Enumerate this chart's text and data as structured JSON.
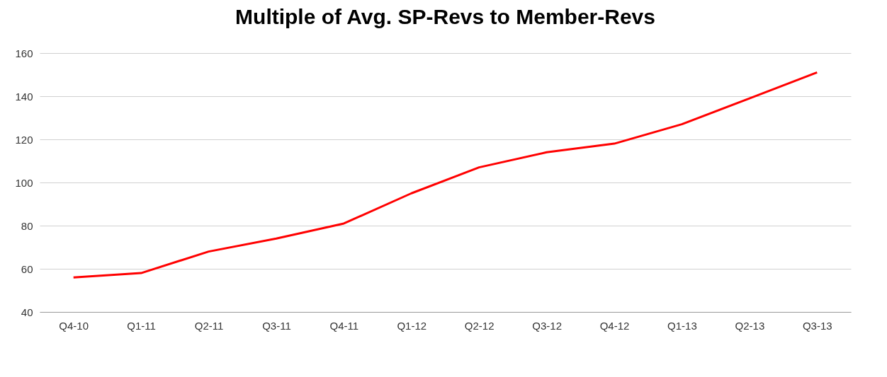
{
  "chart_data": {
    "type": "line",
    "title": "Multiple of Avg. SP-Revs to Member-Revs",
    "categories": [
      "Q4-10",
      "Q1-11",
      "Q2-11",
      "Q3-11",
      "Q4-11",
      "Q1-12",
      "Q2-12",
      "Q3-12",
      "Q4-12",
      "Q1-13",
      "Q2-13",
      "Q3-13"
    ],
    "series": [
      {
        "color": "#ff0000",
        "values": [
          56,
          58,
          68,
          74,
          81,
          95,
          107,
          114,
          118,
          127,
          139,
          151
        ]
      }
    ],
    "ylim": [
      40,
      160
    ],
    "yticks": [
      40,
      60,
      80,
      100,
      120,
      140,
      160
    ],
    "grid": "y",
    "legend": false,
    "marker": "none",
    "line_style": "solid"
  }
}
